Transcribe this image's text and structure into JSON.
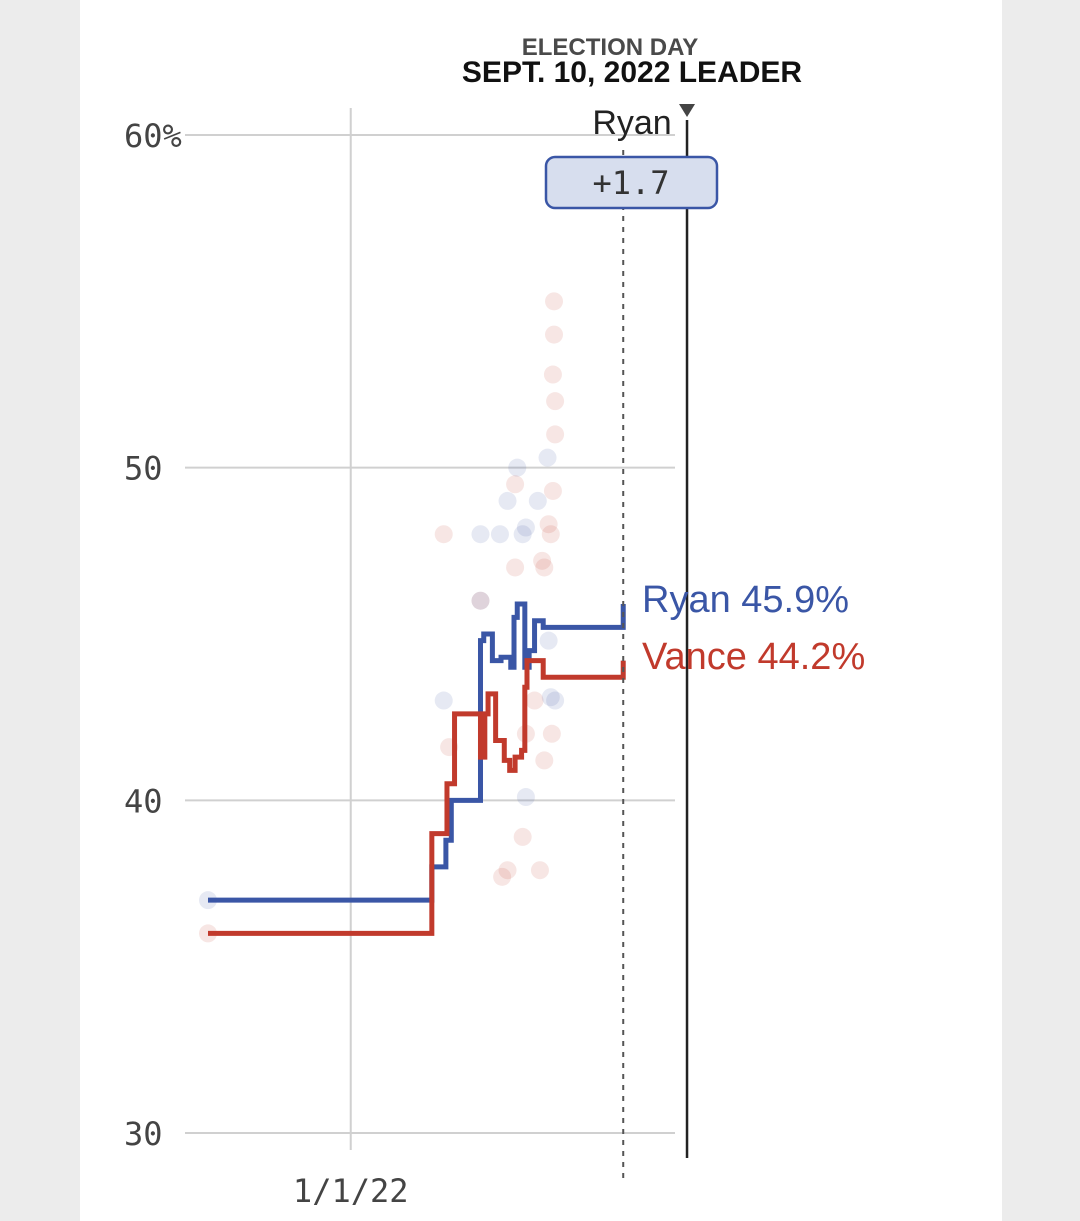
{
  "header": {
    "election_day_label": "ELECTION DAY",
    "leader_label": "SEPT. 10, 2022 LEADER",
    "leader_name": "Ryan",
    "leader_margin": "+1.7"
  },
  "end_labels": {
    "ryan": "Ryan 45.9%",
    "vance": "Vance 44.2%"
  },
  "colors": {
    "ryan": "#3a56a6",
    "vance": "#c13a2c",
    "grid": "#d0d0d0",
    "badge_fill": "#d7deee",
    "badge_stroke": "#3a56a6"
  },
  "chart_data": {
    "type": "line",
    "ylim": [
      30,
      62
    ],
    "y_ticks": [
      {
        "value": 60,
        "label": "60%"
      },
      {
        "value": 50,
        "label": "50"
      },
      {
        "value": 40,
        "label": "40"
      },
      {
        "value": 30,
        "label": "30"
      }
    ],
    "x_ticks": [
      {
        "date": "2022-01-01",
        "label": "1/1/22"
      }
    ],
    "xlim": [
      "2021-08-22",
      "2022-11-20"
    ],
    "current_date": "2022-09-10",
    "election_date": "2022-11-08",
    "series": [
      {
        "name": "Ryan",
        "color_key": "ryan",
        "steps": [
          [
            "2021-08-22",
            37.0
          ],
          [
            "2022-03-17",
            38.0
          ],
          [
            "2022-03-30",
            38.8
          ],
          [
            "2022-04-04",
            40.0
          ],
          [
            "2022-05-01",
            44.8
          ],
          [
            "2022-05-04",
            45.0
          ],
          [
            "2022-05-12",
            44.2
          ],
          [
            "2022-05-20",
            44.3
          ],
          [
            "2022-05-29",
            44.0
          ],
          [
            "2022-06-01",
            45.5
          ],
          [
            "2022-06-04",
            45.9
          ],
          [
            "2022-06-11",
            44.0
          ],
          [
            "2022-06-15",
            44.5
          ],
          [
            "2022-06-20",
            45.4
          ],
          [
            "2022-06-28",
            45.2
          ],
          [
            "2022-09-10",
            45.9
          ]
        ]
      },
      {
        "name": "Vance",
        "color_key": "vance",
        "steps": [
          [
            "2021-08-22",
            36.0
          ],
          [
            "2022-03-17",
            39.0
          ],
          [
            "2022-03-27",
            39.0
          ],
          [
            "2022-03-31",
            40.5
          ],
          [
            "2022-04-07",
            42.6
          ],
          [
            "2022-05-01",
            41.3
          ],
          [
            "2022-05-05",
            42.6
          ],
          [
            "2022-05-08",
            43.2
          ],
          [
            "2022-05-15",
            41.8
          ],
          [
            "2022-05-23",
            41.2
          ],
          [
            "2022-05-28",
            40.9
          ],
          [
            "2022-06-02",
            41.3
          ],
          [
            "2022-06-08",
            41.5
          ],
          [
            "2022-06-11",
            43.4
          ],
          [
            "2022-06-13",
            44.2
          ],
          [
            "2022-06-28",
            43.7
          ],
          [
            "2022-09-10",
            44.2
          ]
        ]
      }
    ],
    "polls": [
      {
        "candidate": "Ryan",
        "date": "2021-08-22",
        "value": 37.0
      },
      {
        "candidate": "Vance",
        "date": "2021-08-22",
        "value": 36.0
      },
      {
        "candidate": "Vance",
        "date": "2022-03-28",
        "value": 48.0
      },
      {
        "candidate": "Ryan",
        "date": "2022-03-28",
        "value": 43.0
      },
      {
        "candidate": "Vance",
        "date": "2022-04-02",
        "value": 41.6
      },
      {
        "candidate": "Ryan",
        "date": "2022-05-01",
        "value": 48.0
      },
      {
        "candidate": "Vance",
        "date": "2022-05-01",
        "value": 46.0
      },
      {
        "candidate": "Ryan",
        "date": "2022-05-01",
        "value": 46.0
      },
      {
        "candidate": "Ryan",
        "date": "2022-05-19",
        "value": 48.0
      },
      {
        "candidate": "Vance",
        "date": "2022-05-21",
        "value": 37.7
      },
      {
        "candidate": "Ryan",
        "date": "2022-05-26",
        "value": 49.0
      },
      {
        "candidate": "Vance",
        "date": "2022-05-26",
        "value": 37.9
      },
      {
        "candidate": "Ryan",
        "date": "2022-06-04",
        "value": 50.0
      },
      {
        "candidate": "Vance",
        "date": "2022-06-02",
        "value": 49.5
      },
      {
        "candidate": "Vance",
        "date": "2022-06-02",
        "value": 47.0
      },
      {
        "candidate": "Ryan",
        "date": "2022-06-09",
        "value": 48.0
      },
      {
        "candidate": "Vance",
        "date": "2022-06-09",
        "value": 38.9
      },
      {
        "candidate": "Ryan",
        "date": "2022-06-12",
        "value": 40.1
      },
      {
        "candidate": "Ryan",
        "date": "2022-06-12",
        "value": 48.2
      },
      {
        "candidate": "Vance",
        "date": "2022-06-12",
        "value": 42.0
      },
      {
        "candidate": "Vance",
        "date": "2022-06-20",
        "value": 43.0
      },
      {
        "candidate": "Ryan",
        "date": "2022-06-23",
        "value": 49.0
      },
      {
        "candidate": "Vance",
        "date": "2022-06-25",
        "value": 37.9
      },
      {
        "candidate": "Vance",
        "date": "2022-06-27",
        "value": 47.2
      },
      {
        "candidate": "Vance",
        "date": "2022-06-29",
        "value": 41.2
      },
      {
        "candidate": "Ryan",
        "date": "2022-07-02",
        "value": 50.3
      },
      {
        "candidate": "Ryan",
        "date": "2022-07-03",
        "value": 44.8
      },
      {
        "candidate": "Vance",
        "date": "2022-07-03",
        "value": 48.3
      },
      {
        "candidate": "Ryan",
        "date": "2022-07-05",
        "value": 43.1
      },
      {
        "candidate": "Vance",
        "date": "2022-07-06",
        "value": 42.0
      },
      {
        "candidate": "Vance",
        "date": "2022-07-07",
        "value": 52.8
      },
      {
        "candidate": "Vance",
        "date": "2022-07-07",
        "value": 49.3
      },
      {
        "candidate": "Vance",
        "date": "2022-07-08",
        "value": 55.0
      },
      {
        "candidate": "Vance",
        "date": "2022-07-08",
        "value": 54.0
      },
      {
        "candidate": "Vance",
        "date": "2022-07-09",
        "value": 52.0
      },
      {
        "candidate": "Vance",
        "date": "2022-07-09",
        "value": 51.0
      },
      {
        "candidate": "Ryan",
        "date": "2022-07-09",
        "value": 43.0
      },
      {
        "candidate": "Vance",
        "date": "2022-07-05",
        "value": 48.0
      },
      {
        "candidate": "Vance",
        "date": "2022-06-29",
        "value": 47.0
      }
    ]
  }
}
